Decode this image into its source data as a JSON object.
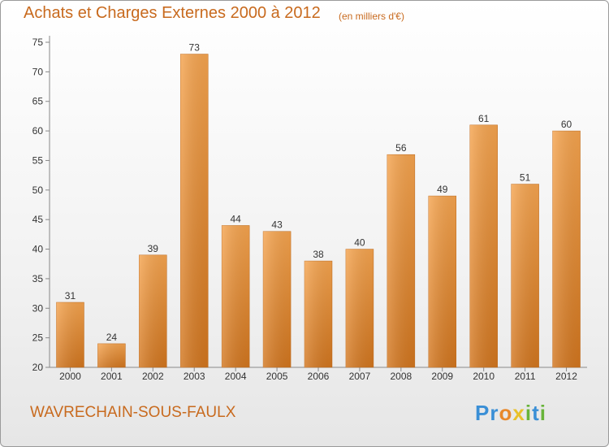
{
  "chart_data": {
    "type": "bar",
    "title": "Achats et Charges Externes 2000 à 2012",
    "subtitle": "(en milliers d'€)",
    "categories": [
      "2000",
      "2001",
      "2002",
      "2003",
      "2004",
      "2005",
      "2006",
      "2007",
      "2008",
      "2009",
      "2010",
      "2011",
      "2012"
    ],
    "values": [
      31,
      24,
      39,
      73,
      44,
      43,
      38,
      40,
      56,
      49,
      61,
      51,
      60
    ],
    "ylim": [
      20,
      75
    ],
    "yticks": [
      20,
      25,
      30,
      35,
      40,
      45,
      50,
      55,
      60,
      65,
      70,
      75
    ],
    "grid": false,
    "bar_color_top": "#f5a44f",
    "bar_color_bottom": "#d2761f"
  },
  "footer": {
    "commune": "WAVRECHAIN-SOUS-FAULX",
    "logo_text": "Proxiti",
    "logo_letters": [
      {
        "ch": "P",
        "color": "#3a8fd6"
      },
      {
        "ch": "r",
        "color": "#3a8fd6"
      },
      {
        "ch": "o",
        "color": "#e8882a"
      },
      {
        "ch": "x",
        "color": "#e8c12a"
      },
      {
        "ch": "i",
        "color": "#68b43a"
      },
      {
        "ch": "t",
        "color": "#3a8fd6"
      },
      {
        "ch": "i",
        "color": "#68b43a"
      }
    ]
  }
}
